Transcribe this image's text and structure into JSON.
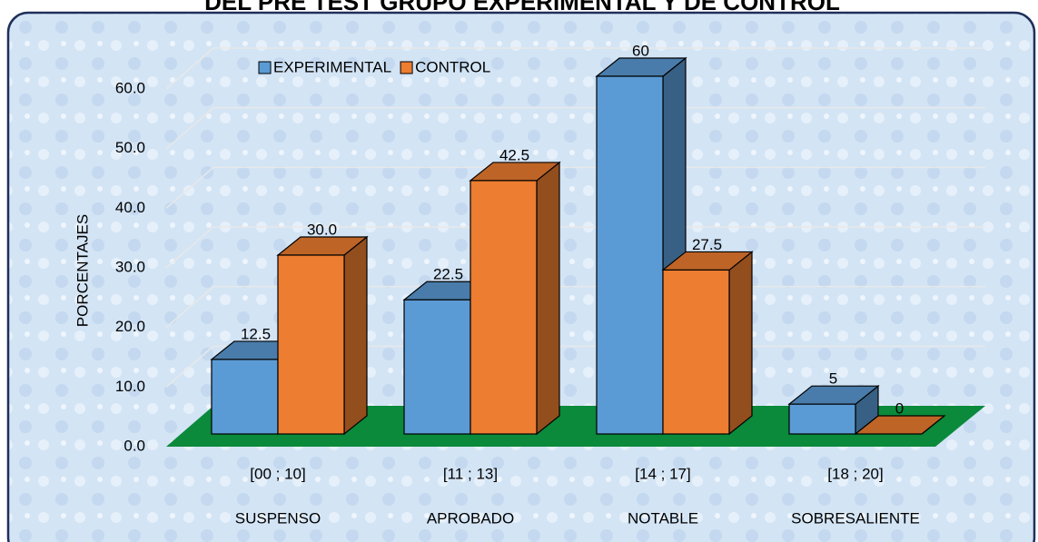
{
  "chart_data": {
    "type": "bar3d",
    "title": "DEL PRE TEST GRUPO EXPERIMENTAL Y DE CONTROL",
    "y_label": "PORCENTAJES",
    "categories": [
      "[00 ; 10]",
      "[11 ; 13]",
      "[14 ; 17]",
      "[18 ; 20]"
    ],
    "category_names": [
      "SUSPENSO",
      "APROBADO",
      "NOTABLE",
      "SOBRESALIENTE"
    ],
    "series": [
      {
        "name": "EXPERIMENTAL",
        "color": "#5b9bd5",
        "values": [
          12.5,
          22.5,
          60,
          5
        ],
        "value_labels": [
          "12.5",
          "22.5",
          "60",
          "5"
        ]
      },
      {
        "name": "CONTROL",
        "color": "#ed7d31",
        "values": [
          30,
          42.5,
          27.5,
          0
        ],
        "value_labels": [
          "30.0",
          "42.5",
          "27.5",
          "0"
        ]
      }
    ],
    "ylim": [
      0,
      60
    ],
    "yticks": [
      {
        "value": 0,
        "label": "0.0"
      },
      {
        "value": 10,
        "label": "10.0"
      },
      {
        "value": 20,
        "label": "20.0"
      },
      {
        "value": 30,
        "label": "30.0"
      },
      {
        "value": 40,
        "label": "40.0"
      },
      {
        "value": 50,
        "label": "50.0"
      },
      {
        "value": 60,
        "label": "60.0"
      }
    ],
    "grid": true,
    "floor_color": "#0a8a3a"
  }
}
